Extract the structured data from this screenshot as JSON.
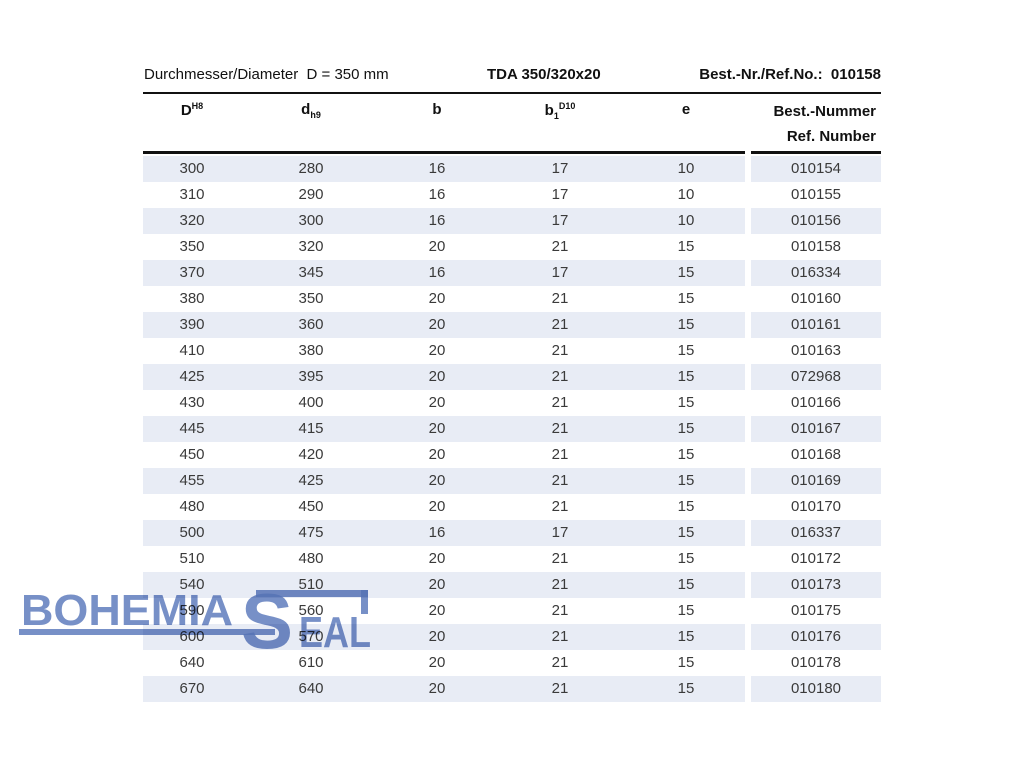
{
  "header": {
    "left": "Durchmesser/Diameter  D = 350 mm",
    "model": "TDA 350/320x20",
    "ref": "Best.-Nr./Ref.No.:  010158"
  },
  "table": {
    "columns": [
      {
        "base": "D",
        "sup": "H8"
      },
      {
        "base": "d",
        "sub": "h9"
      },
      {
        "base": "b"
      },
      {
        "base": "b",
        "sub": "1",
        "sup": "D10"
      },
      {
        "base": "e"
      },
      {
        "line1": "Best.-Nummer",
        "line2": "Ref. Number"
      }
    ],
    "rows": [
      [
        "300",
        "280",
        "16",
        "17",
        "10",
        "010154"
      ],
      [
        "310",
        "290",
        "16",
        "17",
        "10",
        "010155"
      ],
      [
        "320",
        "300",
        "16",
        "17",
        "10",
        "010156"
      ],
      [
        "350",
        "320",
        "20",
        "21",
        "15",
        "010158"
      ],
      [
        "370",
        "345",
        "16",
        "17",
        "15",
        "016334"
      ],
      [
        "380",
        "350",
        "20",
        "21",
        "15",
        "010160"
      ],
      [
        "390",
        "360",
        "20",
        "21",
        "15",
        "010161"
      ],
      [
        "410",
        "380",
        "20",
        "21",
        "15",
        "010163"
      ],
      [
        "425",
        "395",
        "20",
        "21",
        "15",
        "072968"
      ],
      [
        "430",
        "400",
        "20",
        "21",
        "15",
        "010166"
      ],
      [
        "445",
        "415",
        "20",
        "21",
        "15",
        "010167"
      ],
      [
        "450",
        "420",
        "20",
        "21",
        "15",
        "010168"
      ],
      [
        "455",
        "425",
        "20",
        "21",
        "15",
        "010169"
      ],
      [
        "480",
        "450",
        "20",
        "21",
        "15",
        "010170"
      ],
      [
        "500",
        "475",
        "16",
        "17",
        "15",
        "016337"
      ],
      [
        "510",
        "480",
        "20",
        "21",
        "15",
        "010172"
      ],
      [
        "540",
        "510",
        "20",
        "21",
        "15",
        "010173"
      ],
      [
        "590",
        "560",
        "20",
        "21",
        "15",
        "010175"
      ],
      [
        "600",
        "570",
        "20",
        "21",
        "15",
        "010176"
      ],
      [
        "640",
        "610",
        "20",
        "21",
        "15",
        "010178"
      ],
      [
        "670",
        "640",
        "20",
        "21",
        "15",
        "010180"
      ]
    ]
  },
  "logo": {
    "word1": "BOHEMIA",
    "s": "S",
    "word2_rest": "EAL",
    "color": "#5f7dbd"
  },
  "colors": {
    "row_band": "#e8ecf5",
    "rule": "#111111",
    "cell_text": "#3a3a3a"
  }
}
